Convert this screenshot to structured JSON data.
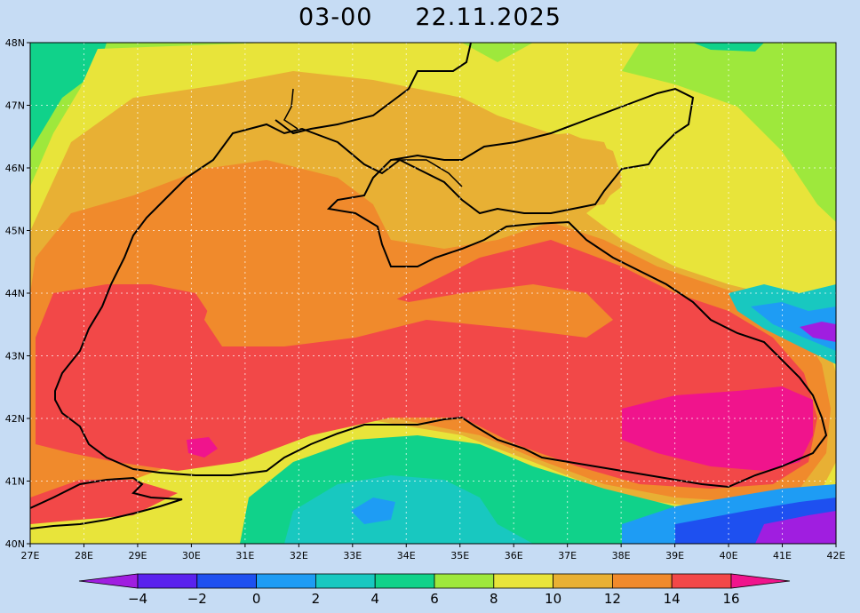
{
  "header": {
    "time": "03-00",
    "date": "22.11.2025"
  },
  "axes": {
    "lat_labels": [
      "48N",
      "47N",
      "46N",
      "45N",
      "44N",
      "43N",
      "42N",
      "41N",
      "40N"
    ],
    "lon_labels": [
      "27E",
      "28E",
      "29E",
      "30E",
      "31E",
      "32E",
      "33E",
      "34E",
      "35E",
      "36E",
      "37E",
      "38E",
      "39E",
      "40E",
      "41E",
      "42E"
    ],
    "lat_range": [
      40,
      48
    ],
    "lon_range": [
      27,
      42
    ],
    "grid": true
  },
  "colorbar": {
    "levels": [
      "-4",
      "-2",
      "0",
      "2",
      "4",
      "6",
      "8",
      "10",
      "12",
      "14",
      "16"
    ],
    "colors": [
      "#a01ee0",
      "#5a22ee",
      "#1e50f0",
      "#1e9cf4",
      "#18c8c0",
      "#10d28a",
      "#9ee83c",
      "#e8e43a",
      "#e8b034",
      "#f08a2c",
      "#f24848",
      "#f0148c"
    ]
  },
  "field_colors": {
    "l6": "#10d28a",
    "l8": "#9ee83c",
    "l10": "#e8e43a",
    "l12": "#e8b034",
    "l14": "#f08a2c",
    "l16": "#f24848",
    "l18": "#f0148c",
    "cold2": "#18c8c0",
    "cold0": "#1e9cf4",
    "cold_2": "#1e50f0",
    "cold_4": "#a01ee0"
  }
}
